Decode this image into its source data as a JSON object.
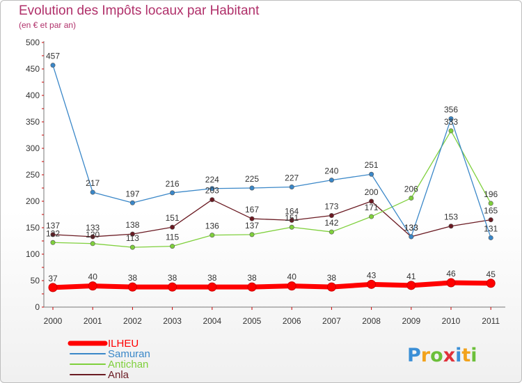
{
  "header": {
    "title": "Evolution des Impôts locaux par Habitant",
    "subtitle": "(en € et par an)"
  },
  "logo": {
    "text": "Proxiti",
    "colors": [
      "#3b8fd6",
      "#f2a21b",
      "#6cbf3a",
      "#e0303a",
      "#3b8fd6",
      "#f2a21b",
      "#6cbf3a"
    ]
  },
  "chart_data": {
    "type": "line",
    "title": "Evolution des Impôts locaux par Habitant",
    "subtitle": "(en € et par an)",
    "xlabel": "",
    "ylabel": "",
    "categories": [
      "2000",
      "2001",
      "2002",
      "2003",
      "2004",
      "2005",
      "2006",
      "2007",
      "2008",
      "2009",
      "2010",
      "2011"
    ],
    "ylim": [
      0,
      500
    ],
    "yticks": [
      0,
      50,
      100,
      150,
      200,
      250,
      300,
      350,
      400,
      450,
      500
    ],
    "grid": false,
    "legend": "bottom-left",
    "series": [
      {
        "name": "ILHEU",
        "color": "#ff0000",
        "values": [
          37,
          40,
          38,
          38,
          38,
          38,
          40,
          38,
          43,
          41,
          46,
          45
        ]
      },
      {
        "name": "Samuran",
        "color": "#3a87c8",
        "values": [
          457,
          217,
          197,
          216,
          224,
          225,
          227,
          240,
          251,
          133,
          356,
          131
        ]
      },
      {
        "name": "Antichan",
        "color": "#7fd03c",
        "values": [
          122,
          120,
          113,
          115,
          136,
          137,
          151,
          142,
          171,
          206,
          333,
          196
        ]
      },
      {
        "name": "Anla",
        "color": "#6a1a22",
        "values": [
          137,
          133,
          138,
          151,
          203,
          167,
          164,
          173,
          200,
          133,
          153,
          165
        ]
      }
    ]
  }
}
